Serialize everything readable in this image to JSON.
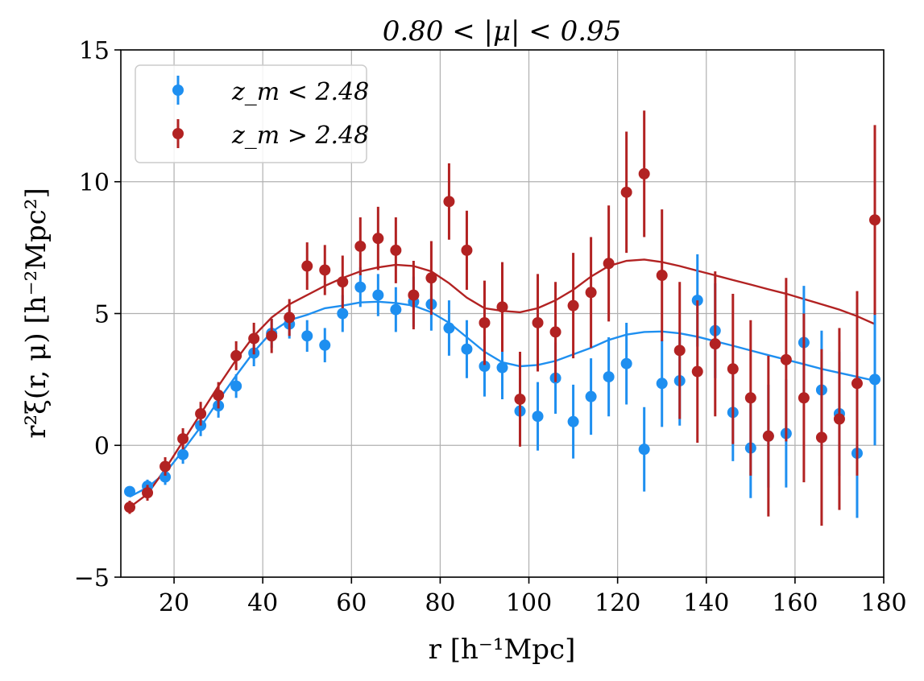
{
  "chart_data": {
    "type": "scatter",
    "title": "0.80 < |μ| < 0.95",
    "xlabel": "r [h⁻¹Mpc]",
    "ylabel": "r²ξ(r, μ) [h⁻²Mpc²]",
    "xlim": [
      8,
      180
    ],
    "ylim": [
      -5,
      15
    ],
    "xticks": [
      20,
      40,
      60,
      80,
      100,
      120,
      140,
      160,
      180
    ],
    "yticks": [
      -5,
      0,
      5,
      10,
      15
    ],
    "xtick_labels": [
      "20",
      "40",
      "60",
      "80",
      "100",
      "120",
      "140",
      "160",
      "180"
    ],
    "ytick_labels": [
      "−5",
      "0",
      "5",
      "10",
      "15"
    ],
    "grid": true,
    "legend_position": "top-left",
    "x": [
      10,
      14,
      18,
      22,
      26,
      30,
      34,
      38,
      42,
      46,
      50,
      54,
      58,
      62,
      66,
      70,
      74,
      78,
      82,
      86,
      90,
      94,
      98,
      102,
      106,
      110,
      114,
      118,
      122,
      126,
      130,
      134,
      138,
      142,
      146,
      150,
      154,
      158,
      162,
      166,
      170,
      174,
      178
    ],
    "series": [
      {
        "name": "z_m < 2.48",
        "legend_label": "z_m < 2.48",
        "color": "#1e8ff0",
        "y": [
          -1.75,
          -1.55,
          -1.2,
          -0.35,
          0.75,
          1.5,
          2.25,
          3.5,
          4.25,
          4.6,
          4.15,
          3.8,
          5.0,
          6.0,
          5.7,
          5.15,
          5.45,
          5.35,
          4.45,
          3.65,
          3.0,
          2.95,
          1.3,
          1.1,
          2.55,
          0.9,
          1.85,
          2.6,
          3.1,
          -0.15,
          2.35,
          2.45,
          5.5,
          4.35,
          1.25,
          -0.1,
          0.35,
          0.45,
          3.9,
          2.1,
          1.2,
          -0.3,
          2.5
        ],
        "yerr": [
          0.2,
          0.25,
          0.3,
          0.35,
          0.4,
          0.45,
          0.45,
          0.5,
          0.55,
          0.55,
          0.6,
          0.65,
          0.7,
          0.75,
          0.8,
          0.85,
          0.95,
          1.0,
          1.05,
          1.1,
          1.15,
          1.2,
          1.25,
          1.3,
          1.35,
          1.4,
          1.45,
          1.5,
          1.55,
          1.6,
          1.65,
          1.7,
          1.75,
          1.8,
          1.85,
          1.9,
          1.95,
          2.05,
          2.15,
          2.25,
          2.35,
          2.45,
          2.5
        ],
        "model": [
          -1.95,
          -1.6,
          -1.05,
          -0.2,
          0.7,
          1.7,
          2.65,
          3.55,
          4.3,
          4.75,
          4.95,
          5.2,
          5.3,
          5.42,
          5.45,
          5.4,
          5.3,
          5.05,
          4.65,
          4.1,
          3.55,
          3.15,
          3.0,
          3.05,
          3.2,
          3.45,
          3.7,
          4.0,
          4.2,
          4.3,
          4.32,
          4.25,
          4.12,
          3.95,
          3.78,
          3.6,
          3.42,
          3.25,
          3.08,
          2.9,
          2.75,
          2.6,
          2.45
        ]
      },
      {
        "name": "z_m > 2.48",
        "legend_label": "z_m > 2.48",
        "color": "#b22222",
        "y": [
          -2.35,
          -1.8,
          -0.8,
          0.25,
          1.2,
          1.9,
          3.4,
          4.05,
          4.15,
          4.85,
          6.8,
          6.65,
          6.2,
          7.55,
          7.85,
          7.4,
          5.7,
          6.35,
          9.25,
          7.4,
          4.65,
          5.25,
          1.75,
          4.65,
          4.3,
          5.3,
          5.8,
          6.9,
          9.6,
          10.3,
          6.45,
          3.6,
          2.8,
          3.85,
          2.9,
          1.8,
          0.35,
          3.25,
          1.8,
          0.3,
          1.0,
          2.35,
          8.55
        ]
      }
    ]
  },
  "series_red_extra": {
    "yerr": [
      0.25,
      0.3,
      0.35,
      0.4,
      0.45,
      0.5,
      0.55,
      0.6,
      0.65,
      0.7,
      0.9,
      0.95,
      1.0,
      1.1,
      1.2,
      1.25,
      1.3,
      1.4,
      1.45,
      1.5,
      1.6,
      1.7,
      1.8,
      1.85,
      1.9,
      2.0,
      2.1,
      2.2,
      2.3,
      2.4,
      2.5,
      2.6,
      2.7,
      2.75,
      2.85,
      2.95,
      3.05,
      3.1,
      3.2,
      3.35,
      3.45,
      3.5,
      3.6
    ],
    "model": [
      -2.35,
      -1.85,
      -0.9,
      0.15,
      1.2,
      2.25,
      3.25,
      4.15,
      4.85,
      5.35,
      5.7,
      6.05,
      6.35,
      6.6,
      6.75,
      6.85,
      6.8,
      6.6,
      6.15,
      5.6,
      5.2,
      5.1,
      5.05,
      5.2,
      5.5,
      5.9,
      6.4,
      6.8,
      7.0,
      7.05,
      6.95,
      6.8,
      6.62,
      6.45,
      6.27,
      6.1,
      5.92,
      5.75,
      5.55,
      5.35,
      5.15,
      4.9,
      4.6
    ]
  }
}
